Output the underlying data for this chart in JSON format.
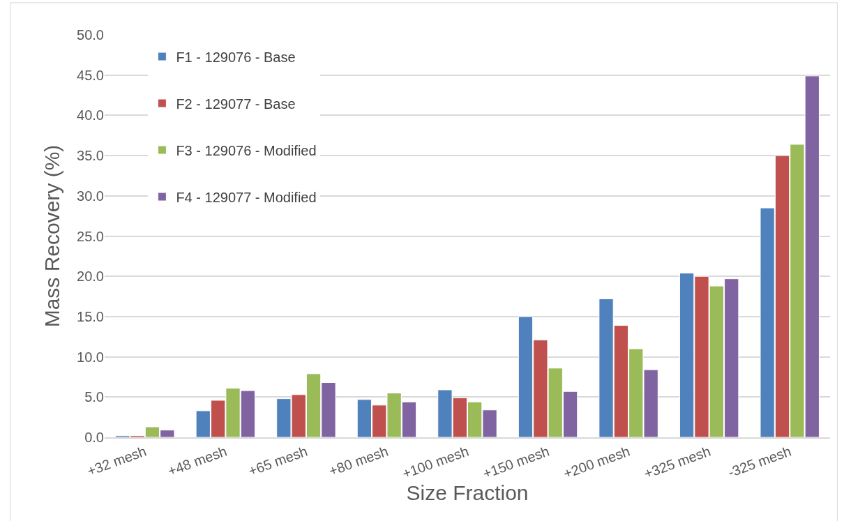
{
  "chart_data": {
    "type": "bar",
    "xlabel": "Size Fraction",
    "ylabel": "Mass Recovery (%)",
    "categories": [
      "+32 mesh",
      "+48 mesh",
      "+65 mesh",
      "+80 mesh",
      "+100 mesh",
      "+150 mesh",
      "+200 mesh",
      "+325 mesh",
      "-325 mesh"
    ],
    "series": [
      {
        "name": "F1 - 129076 - Base",
        "color": "#4f81bd",
        "values": [
          0.2,
          3.3,
          4.8,
          4.7,
          5.9,
          15.0,
          17.2,
          20.4,
          28.5
        ]
      },
      {
        "name": "F2 - 129077 - Base",
        "color": "#c0504d",
        "values": [
          0.2,
          4.6,
          5.3,
          4.0,
          4.9,
          12.1,
          13.9,
          20.0,
          35.0
        ]
      },
      {
        "name": "F3 - 129076 - Modified",
        "color": "#9bbb59",
        "values": [
          1.3,
          6.1,
          7.9,
          5.5,
          4.4,
          8.6,
          11.0,
          18.8,
          36.4
        ]
      },
      {
        "name": "F4 - 129077 - Modified",
        "color": "#8064a2",
        "values": [
          0.9,
          5.8,
          6.8,
          4.4,
          3.4,
          5.7,
          8.4,
          19.7,
          44.9
        ]
      }
    ],
    "ylim": [
      0,
      50
    ],
    "yticks": [
      {
        "value": 0,
        "label": "0.0"
      },
      {
        "value": 5,
        "label": "5.0"
      },
      {
        "value": 10,
        "label": "10.0"
      },
      {
        "value": 15,
        "label": "15.0"
      },
      {
        "value": 20,
        "label": "20.0"
      },
      {
        "value": 25,
        "label": "25.0"
      },
      {
        "value": 30,
        "label": "30.0"
      },
      {
        "value": 35,
        "label": "35.0"
      },
      {
        "value": 40,
        "label": "40.0"
      },
      {
        "value": 45,
        "label": "45.0"
      },
      {
        "value": 50,
        "label": "50.0"
      }
    ],
    "grid": "y",
    "legend": "top left"
  }
}
